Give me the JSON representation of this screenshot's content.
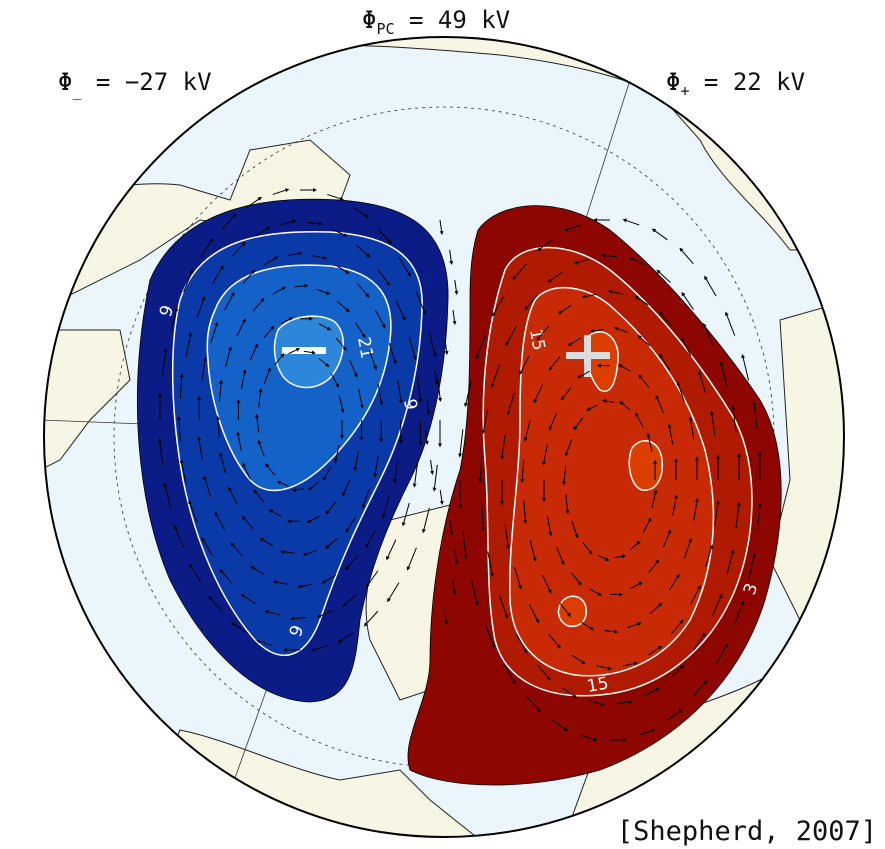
{
  "potentials": {
    "pc": {
      "symbol": "Φ",
      "sub": "PC",
      "value": " = 49 kV"
    },
    "minus": {
      "symbol": "Φ",
      "sub": "_",
      "value": " = −27 kV"
    },
    "plus": {
      "symbol": "Φ",
      "sub": "+",
      "value": " = 22 kV"
    }
  },
  "citation": "[Shepherd, 2007]",
  "contour_labels": {
    "neg_9a": "9",
    "neg_9b": "9",
    "neg_9c": "9",
    "neg_21": "21",
    "pos_15a": "15",
    "pos_15b": "15",
    "pos_3": "3"
  },
  "colors": {
    "land": "#f7f5e3",
    "ocean": "#eaf5fc",
    "neg_outer": "#0b1c86",
    "neg_mid": "#0a3aa8",
    "neg_inner": "#1461c8",
    "neg_core": "#2c86da",
    "pos_outer": "#8e0600",
    "pos_mid": "#b01a00",
    "pos_inner": "#c72a05",
    "pos_core": "#dc3e00"
  },
  "markers": {
    "min_symbol": "minus",
    "max_symbol": "plus"
  }
}
